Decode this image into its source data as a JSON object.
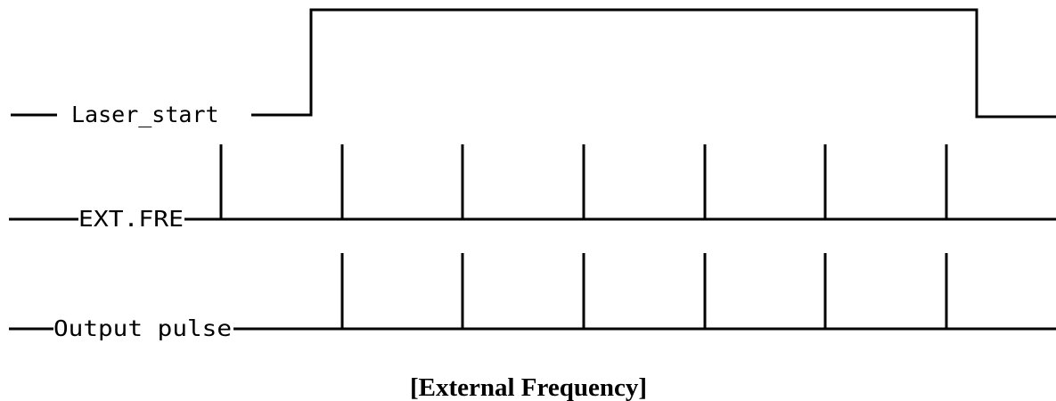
{
  "signals": [
    {
      "name": "Laser_start"
    },
    {
      "name": "EXT.FRE"
    },
    {
      "name": "Output pulse"
    }
  ],
  "caption": "[External Frequency]",
  "colors": {
    "line": "#000000",
    "background": "#ffffff"
  }
}
